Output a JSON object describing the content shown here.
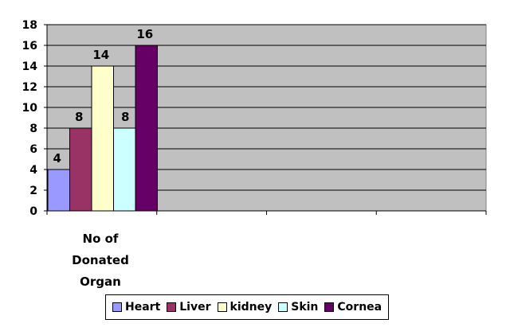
{
  "chart_data": {
    "type": "bar",
    "categories": [
      "No of Donated Organ"
    ],
    "category_lines": [
      "No of",
      "Donated",
      "Organ"
    ],
    "series": [
      {
        "name": "Heart",
        "values": [
          4
        ],
        "color": "#9999FF"
      },
      {
        "name": "Liver",
        "values": [
          8
        ],
        "color": "#993366"
      },
      {
        "name": "kidney",
        "values": [
          14
        ],
        "color": "#FFFFCC"
      },
      {
        "name": "Skin",
        "values": [
          8
        ],
        "color": "#CCFFFF"
      },
      {
        "name": "Cornea",
        "values": [
          16
        ],
        "color": "#660066"
      }
    ],
    "yticks": [
      0,
      2,
      4,
      6,
      8,
      10,
      12,
      14,
      16,
      18
    ],
    "ylim": [
      0,
      18
    ],
    "title": "",
    "xlabel": "",
    "ylabel": "",
    "grid": true,
    "plot_background": "#C0C0C0",
    "legend_position": "bottom"
  }
}
